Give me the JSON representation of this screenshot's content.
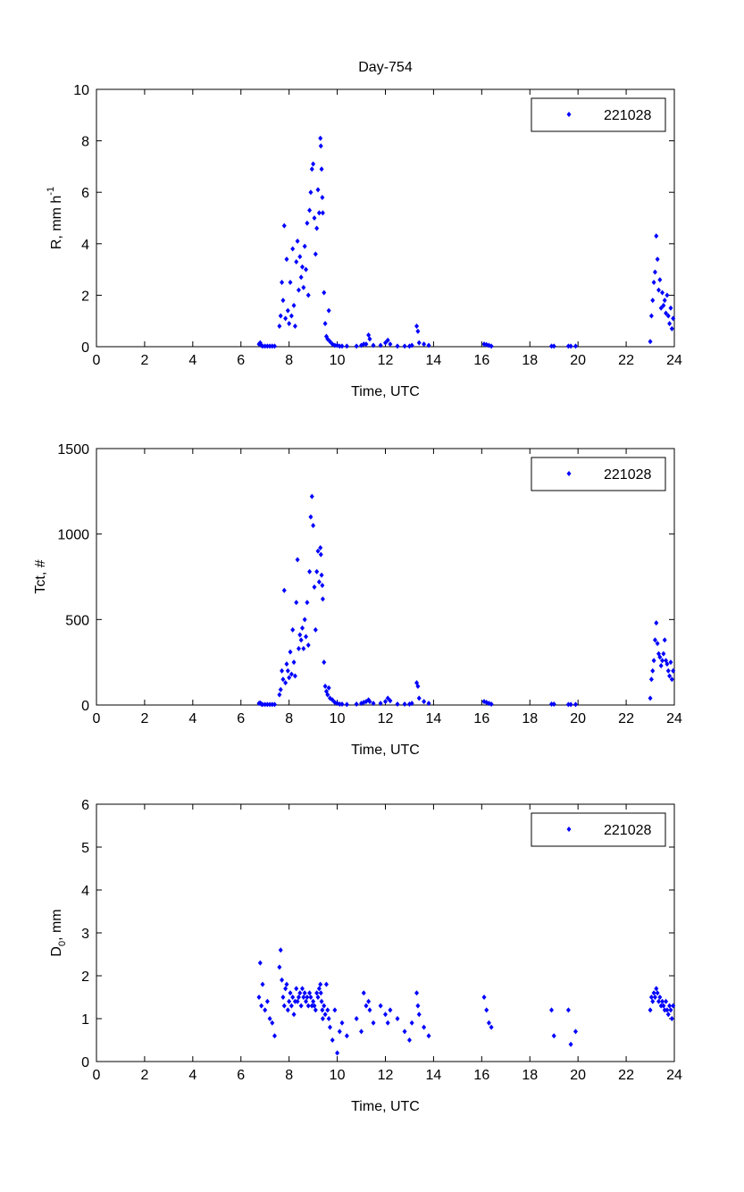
{
  "chart_data": [
    {
      "type": "scatter",
      "title": "Day-754",
      "xlabel": "Time, UTC",
      "ylabel": {
        "main": "R, mm h",
        "sup": "-1",
        "sub": ""
      },
      "xlim": [
        0,
        24
      ],
      "ylim": [
        0,
        10
      ],
      "xticks": [
        0,
        2,
        4,
        6,
        8,
        10,
        12,
        14,
        16,
        18,
        20,
        22,
        24
      ],
      "yticks": [
        0,
        2,
        4,
        6,
        8,
        10
      ],
      "legend": {
        "label": "221028",
        "position": "top-right"
      },
      "series_key": "R"
    },
    {
      "type": "scatter",
      "title": "",
      "xlabel": "Time, UTC",
      "ylabel": {
        "main": "Tct, #",
        "sup": "",
        "sub": ""
      },
      "xlim": [
        0,
        24
      ],
      "ylim": [
        0,
        1500
      ],
      "xticks": [
        0,
        2,
        4,
        6,
        8,
        10,
        12,
        14,
        16,
        18,
        20,
        22,
        24
      ],
      "yticks": [
        0,
        500,
        1000,
        1500
      ],
      "legend": {
        "label": "221028",
        "position": "top-right"
      },
      "series_key": "Tct"
    },
    {
      "type": "scatter",
      "title": "",
      "xlabel": "Time, UTC",
      "ylabel": {
        "main": "D",
        "sub": "0",
        "rest": ", mm",
        "sup": ""
      },
      "xlim": [
        0,
        24
      ],
      "ylim": [
        0,
        6
      ],
      "xticks": [
        0,
        2,
        4,
        6,
        8,
        10,
        12,
        14,
        16,
        18,
        20,
        22,
        24
      ],
      "yticks": [
        0,
        1,
        2,
        3,
        4,
        5,
        6
      ],
      "legend": {
        "label": "221028",
        "position": "top-right"
      },
      "series_key": "D0"
    }
  ],
  "series": {
    "name": "221028",
    "color": "#0000ff",
    "time": [
      6.75,
      6.8,
      6.85,
      6.9,
      7.0,
      7.1,
      7.2,
      7.3,
      7.4,
      7.6,
      7.65,
      7.7,
      7.75,
      7.8,
      7.85,
      7.9,
      7.95,
      8.0,
      8.05,
      8.1,
      8.15,
      8.2,
      8.25,
      8.3,
      8.35,
      8.4,
      8.45,
      8.5,
      8.55,
      8.6,
      8.65,
      8.7,
      8.75,
      8.8,
      8.85,
      8.9,
      8.95,
      9.0,
      9.05,
      9.1,
      9.15,
      9.2,
      9.25,
      9.3,
      9.32,
      9.35,
      9.38,
      9.4,
      9.45,
      9.5,
      9.55,
      9.6,
      9.65,
      9.7,
      9.8,
      9.9,
      10.0,
      10.1,
      10.2,
      10.4,
      10.8,
      11.0,
      11.1,
      11.2,
      11.3,
      11.35,
      11.5,
      11.8,
      12.0,
      12.1,
      12.2,
      12.5,
      12.8,
      13.0,
      13.1,
      13.3,
      13.35,
      13.4,
      13.6,
      13.8,
      16.1,
      16.2,
      16.3,
      16.4,
      18.9,
      19.0,
      19.6,
      19.7,
      19.9,
      23.0,
      23.05,
      23.1,
      23.15,
      23.2,
      23.25,
      23.3,
      23.35,
      23.4,
      23.45,
      23.5,
      23.55,
      23.6,
      23.65,
      23.7,
      23.75,
      23.8,
      23.85,
      23.9,
      23.95
    ],
    "R": [
      0.1,
      0.15,
      0.05,
      0.02,
      0.02,
      0.02,
      0.02,
      0.02,
      0.02,
      0.8,
      1.2,
      2.5,
      1.8,
      4.7,
      1.1,
      3.4,
      1.4,
      0.9,
      2.5,
      1.2,
      3.8,
      1.6,
      0.8,
      3.3,
      4.1,
      2.2,
      3.5,
      2.7,
      3.1,
      2.3,
      3.9,
      3.0,
      4.8,
      2.0,
      5.3,
      6.0,
      6.9,
      7.1,
      5.0,
      3.6,
      4.6,
      6.1,
      5.2,
      8.1,
      7.8,
      6.9,
      5.8,
      5.2,
      2.1,
      0.9,
      0.4,
      0.3,
      1.4,
      0.2,
      0.1,
      0.05,
      0.05,
      0.02,
      0.02,
      0.02,
      0.02,
      0.05,
      0.1,
      0.1,
      0.45,
      0.3,
      0.05,
      0.05,
      0.15,
      0.25,
      0.1,
      0.02,
      0.02,
      0.02,
      0.05,
      0.8,
      0.6,
      0.15,
      0.1,
      0.05,
      0.1,
      0.08,
      0.05,
      0.02,
      0.02,
      0.02,
      0.02,
      0.02,
      0.02,
      0.2,
      1.2,
      1.8,
      2.5,
      2.9,
      4.3,
      3.4,
      2.2,
      2.6,
      1.5,
      2.1,
      1.6,
      1.8,
      1.3,
      2.0,
      1.2,
      0.9,
      1.5,
      0.7,
      1.1
    ],
    "Tct": [
      10,
      12,
      5,
      3,
      3,
      3,
      3,
      3,
      3,
      60,
      90,
      200,
      150,
      670,
      130,
      240,
      200,
      160,
      310,
      180,
      440,
      250,
      170,
      600,
      850,
      330,
      410,
      380,
      450,
      330,
      500,
      400,
      600,
      350,
      780,
      1100,
      1220,
      1050,
      690,
      440,
      780,
      900,
      720,
      920,
      880,
      760,
      700,
      620,
      250,
      110,
      80,
      60,
      100,
      40,
      30,
      15,
      10,
      5,
      5,
      3,
      5,
      10,
      15,
      20,
      30,
      20,
      10,
      10,
      20,
      40,
      25,
      5,
      5,
      5,
      10,
      130,
      110,
      40,
      20,
      10,
      20,
      15,
      10,
      5,
      5,
      5,
      3,
      3,
      3,
      40,
      150,
      200,
      260,
      380,
      480,
      360,
      300,
      280,
      230,
      260,
      300,
      380,
      260,
      240,
      200,
      170,
      250,
      150,
      200
    ],
    "D0": [
      1.5,
      2.3,
      1.3,
      1.8,
      1.2,
      1.4,
      1.0,
      0.9,
      0.6,
      2.2,
      2.6,
      1.9,
      1.5,
      1.3,
      1.7,
      1.8,
      1.2,
      1.4,
      1.6,
      1.3,
      1.5,
      1.1,
      1.4,
      1.7,
      1.4,
      1.5,
      1.6,
      1.3,
      1.7,
      1.5,
      1.6,
      1.4,
      1.5,
      1.3,
      1.6,
      1.5,
      1.3,
      1.4,
      1.3,
      1.2,
      1.6,
      1.5,
      1.7,
      1.8,
      1.6,
      1.4,
      1.2,
      1.0,
      1.3,
      1.1,
      1.8,
      1.2,
      1.0,
      0.8,
      0.5,
      1.2,
      0.2,
      0.7,
      0.9,
      0.6,
      1.0,
      0.7,
      1.6,
      1.3,
      1.4,
      1.2,
      0.9,
      1.3,
      1.1,
      0.9,
      1.2,
      1.0,
      0.7,
      0.5,
      0.9,
      1.6,
      1.3,
      1.1,
      0.8,
      0.6,
      1.5,
      1.2,
      0.9,
      0.8,
      1.2,
      0.6,
      1.2,
      0.4,
      0.7,
      1.2,
      1.5,
      1.4,
      1.6,
      1.5,
      1.7,
      1.6,
      1.4,
      1.5,
      1.3,
      1.4,
      1.3,
      1.2,
      1.4,
      1.2,
      1.1,
      1.3,
      1.2,
      1.0,
      1.3
    ]
  }
}
